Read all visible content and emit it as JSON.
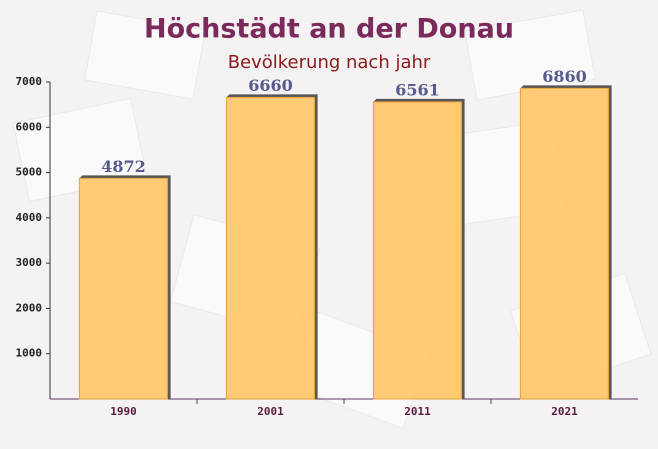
{
  "chart_data": {
    "type": "bar",
    "title": "Höchstädt an der Donau",
    "subtitle": "Bevölkerung nach jahr",
    "categories": [
      "1990",
      "2001",
      "2011",
      "2021"
    ],
    "values": [
      4872,
      6660,
      6561,
      6860
    ],
    "color": "#ffc766",
    "ylim": [
      0,
      7000
    ],
    "yticks": [
      1000,
      2000,
      3000,
      4000,
      5000,
      6000,
      7000
    ],
    "grid": false
  }
}
